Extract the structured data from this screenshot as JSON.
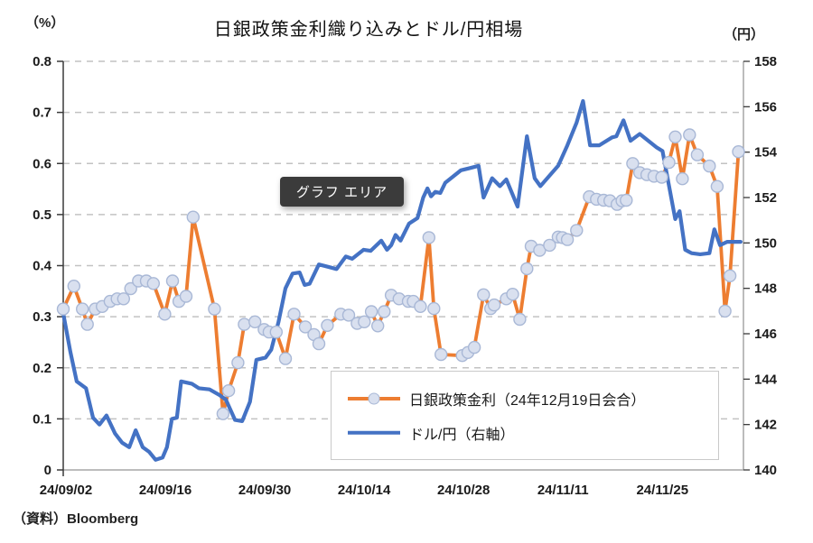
{
  "title": "日銀政策金利織り込みとドル/円相場",
  "left_axis_unit": "（%）",
  "right_axis_unit": "（円）",
  "source": "（資料）Bloomberg",
  "tooltip_label": "グラフ エリア",
  "legend": {
    "items": [
      {
        "label": "日銀政策金利（24年12月19日会合）",
        "series": "boj_rate_pricing"
      },
      {
        "label": "ドル/円（右軸）",
        "series": "usd_jpy"
      }
    ]
  },
  "colors": {
    "rate_line": "#ED7D31",
    "fx_line": "#4472C4",
    "marker_fill": "#d9e0ef",
    "marker_stroke": "#a9b8d6",
    "grid": "#c2c2c2",
    "axis_dark": "#3a3a3a",
    "axis_light": "#a6a6a6",
    "tick_text": "#1a1a1a",
    "tooltip_bg": "#3b3b3b"
  },
  "chart_data": {
    "type": "line",
    "title": "日銀政策金利織り込みとドル/円相場",
    "grid": "horizontal-dashed",
    "legend_position": "inside-bottom-right",
    "x_axis": {
      "max_day": 95.8,
      "ticks": [
        {
          "day": 0,
          "label": "24/09/02"
        },
        {
          "day": 14,
          "label": "24/09/16"
        },
        {
          "day": 28,
          "label": "24/09/30"
        },
        {
          "day": 42,
          "label": "24/10/14"
        },
        {
          "day": 56,
          "label": "24/10/28"
        },
        {
          "day": 70,
          "label": "24/11/11"
        },
        {
          "day": 84,
          "label": "24/11/25"
        }
      ]
    },
    "left_axis": {
      "unit": "%",
      "min": 0,
      "max": 0.8,
      "tick_labels": [
        "0.8",
        "0.7",
        "0.6",
        "0.5",
        "0.4",
        "0.3",
        "0.2",
        "0.1",
        "0"
      ]
    },
    "right_axis": {
      "unit": "円",
      "min": 140,
      "max": 158,
      "tick_labels": [
        "158",
        "156",
        "154",
        "152",
        "150",
        "148",
        "146",
        "144",
        "142",
        "140"
      ]
    },
    "series": [
      {
        "name": "日銀政策金利（24年12月19日会合）",
        "axis": "left",
        "color": "#ED7D31",
        "marker": true,
        "points": [
          [
            0,
            0.315
          ],
          [
            1.5,
            0.36
          ],
          [
            2.7,
            0.315
          ],
          [
            3.4,
            0.285
          ],
          [
            4.5,
            0.315
          ],
          [
            5.5,
            0.32
          ],
          [
            6.6,
            0.33
          ],
          [
            7.6,
            0.335
          ],
          [
            8.5,
            0.335
          ],
          [
            9.5,
            0.355
          ],
          [
            10.6,
            0.37
          ],
          [
            11.7,
            0.37
          ],
          [
            12.7,
            0.365
          ],
          [
            14.3,
            0.305
          ],
          [
            15.4,
            0.37
          ],
          [
            16.3,
            0.33
          ],
          [
            17.3,
            0.34
          ],
          [
            18.3,
            0.495
          ],
          [
            21.3,
            0.315
          ],
          [
            22.5,
            0.11
          ],
          [
            23.3,
            0.155
          ],
          [
            24.6,
            0.21
          ],
          [
            25.5,
            0.285
          ],
          [
            27,
            0.29
          ],
          [
            28.3,
            0.275
          ],
          [
            29,
            0.27
          ],
          [
            30,
            0.27
          ],
          [
            31.3,
            0.218
          ],
          [
            32.5,
            0.305
          ],
          [
            34.1,
            0.28
          ],
          [
            35.3,
            0.265
          ],
          [
            36,
            0.247
          ],
          [
            37.2,
            0.283
          ],
          [
            39.1,
            0.305
          ],
          [
            40.2,
            0.303
          ],
          [
            41.4,
            0.287
          ],
          [
            42.4,
            0.29
          ],
          [
            43.4,
            0.31
          ],
          [
            44.3,
            0.282
          ],
          [
            45.2,
            0.31
          ],
          [
            46.2,
            0.342
          ],
          [
            47.3,
            0.335
          ],
          [
            48.6,
            0.33
          ],
          [
            49.3,
            0.33
          ],
          [
            50.3,
            0.32
          ],
          [
            51.5,
            0.455
          ],
          [
            52.2,
            0.316
          ],
          [
            53.2,
            0.226
          ],
          [
            56.2,
            0.224
          ],
          [
            57,
            0.23
          ],
          [
            57.9,
            0.24
          ],
          [
            59.2,
            0.343
          ],
          [
            60.2,
            0.316
          ],
          [
            60.7,
            0.323
          ],
          [
            62.4,
            0.335
          ],
          [
            63.3,
            0.344
          ],
          [
            64.3,
            0.295
          ],
          [
            65.3,
            0.394
          ],
          [
            65.9,
            0.438
          ],
          [
            67.1,
            0.43
          ],
          [
            68.5,
            0.44
          ],
          [
            69.7,
            0.456
          ],
          [
            70.3,
            0.455
          ],
          [
            71,
            0.451
          ],
          [
            72.3,
            0.469
          ],
          [
            74.1,
            0.535
          ],
          [
            75.1,
            0.53
          ],
          [
            76.1,
            0.528
          ],
          [
            77,
            0.527
          ],
          [
            78,
            0.52
          ],
          [
            78.7,
            0.527
          ],
          [
            79.3,
            0.528
          ],
          [
            80.2,
            0.6
          ],
          [
            81.2,
            0.582
          ],
          [
            82.2,
            0.578
          ],
          [
            83.2,
            0.575
          ],
          [
            84.3,
            0.573
          ],
          [
            85.3,
            0.602
          ],
          [
            86.2,
            0.652
          ],
          [
            87.2,
            0.57
          ],
          [
            88.2,
            0.656
          ],
          [
            89.3,
            0.617
          ],
          [
            91,
            0.595
          ],
          [
            92.1,
            0.555
          ],
          [
            93.2,
            0.311
          ],
          [
            93.9,
            0.38
          ],
          [
            95.1,
            0.623
          ]
        ]
      },
      {
        "name": "ドル/円（右軸）",
        "axis": "right",
        "color": "#4472C4",
        "marker": false,
        "points": [
          [
            0,
            146.9
          ],
          [
            1,
            145.2
          ],
          [
            1.9,
            143.9
          ],
          [
            3.2,
            143.6
          ],
          [
            4.2,
            142.3
          ],
          [
            5.1,
            142.0
          ],
          [
            6.1,
            142.4
          ],
          [
            7.3,
            141.6
          ],
          [
            8.3,
            141.2
          ],
          [
            9.3,
            141.0
          ],
          [
            10.2,
            141.75
          ],
          [
            11.2,
            141.0
          ],
          [
            12.1,
            140.8
          ],
          [
            13,
            140.45
          ],
          [
            14,
            140.55
          ],
          [
            14.6,
            141.0
          ],
          [
            15.3,
            142.25
          ],
          [
            16,
            142.3
          ],
          [
            16.6,
            143.9
          ],
          [
            18.1,
            143.8
          ],
          [
            19.1,
            143.6
          ],
          [
            20.6,
            143.55
          ],
          [
            22,
            143.3
          ],
          [
            22.9,
            143.1
          ],
          [
            24.2,
            142.2
          ],
          [
            25.2,
            142.15
          ],
          [
            26.3,
            143.0
          ],
          [
            27.2,
            144.85
          ],
          [
            28.5,
            144.95
          ],
          [
            29.3,
            145.3
          ],
          [
            30.3,
            146.5
          ],
          [
            31.3,
            148.0
          ],
          [
            32.3,
            148.65
          ],
          [
            33.3,
            148.7
          ],
          [
            34,
            148.15
          ],
          [
            34.7,
            148.2
          ],
          [
            36,
            149.05
          ],
          [
            37.3,
            148.95
          ],
          [
            38.5,
            148.85
          ],
          [
            39.8,
            149.4
          ],
          [
            40.7,
            149.3
          ],
          [
            42.3,
            149.7
          ],
          [
            43.3,
            149.65
          ],
          [
            44.8,
            150.1
          ],
          [
            45.6,
            149.7
          ],
          [
            46.2,
            149.9
          ],
          [
            46.8,
            150.35
          ],
          [
            47.5,
            150.1
          ],
          [
            48.7,
            150.85
          ],
          [
            49.9,
            151.1
          ],
          [
            50.7,
            152.0
          ],
          [
            51.3,
            152.4
          ],
          [
            51.8,
            152.05
          ],
          [
            52.4,
            152.25
          ],
          [
            53.1,
            152.2
          ],
          [
            53.8,
            152.65
          ],
          [
            56,
            153.2
          ],
          [
            57.3,
            153.3
          ],
          [
            58.5,
            153.4
          ],
          [
            59.2,
            152.0
          ],
          [
            60.4,
            152.85
          ],
          [
            61.5,
            152.5
          ],
          [
            62.4,
            152.8
          ],
          [
            64,
            151.6
          ],
          [
            65.3,
            154.7
          ],
          [
            66.4,
            152.85
          ],
          [
            67.2,
            152.5
          ],
          [
            69.7,
            153.4
          ],
          [
            71,
            154.3
          ],
          [
            72.3,
            155.3
          ],
          [
            73.2,
            156.25
          ],
          [
            74.2,
            154.3
          ],
          [
            75.5,
            154.3
          ],
          [
            77.3,
            154.65
          ],
          [
            77.9,
            154.7
          ],
          [
            78.9,
            155.4
          ],
          [
            79.9,
            154.5
          ],
          [
            81.2,
            154.8
          ],
          [
            83.6,
            154.2
          ],
          [
            84.4,
            154.05
          ],
          [
            86.2,
            151.05
          ],
          [
            86.8,
            151.4
          ],
          [
            87.6,
            149.7
          ],
          [
            88.5,
            149.55
          ],
          [
            89.7,
            149.5
          ],
          [
            91,
            149.55
          ],
          [
            91.7,
            150.6
          ],
          [
            92.5,
            149.9
          ],
          [
            93.5,
            150.05
          ],
          [
            95.4,
            150.05
          ]
        ]
      }
    ]
  }
}
